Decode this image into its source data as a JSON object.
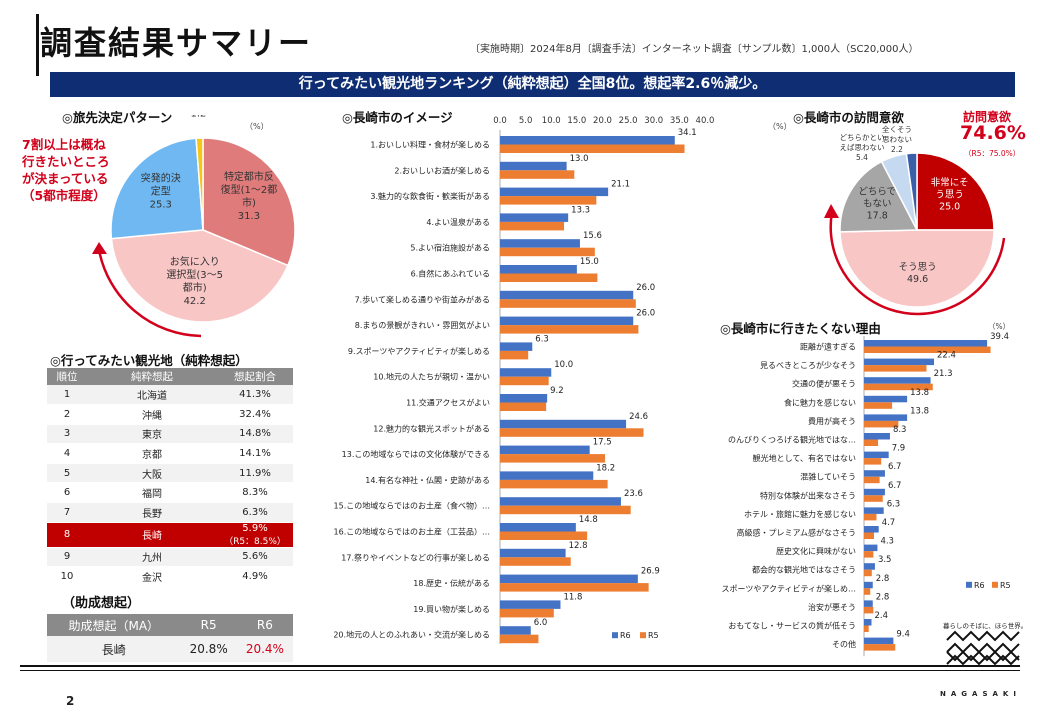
{
  "header": {
    "title": "調査結果サマリー",
    "meta": "〔実施時期〕2024年8月〔調査手法〕インターネット調査〔サンプル数〕1,000人（SC20,000人）",
    "banner": "行ってみたい観光地ランキング（純粋想起）全国8位。想起率2.6％減少。"
  },
  "colors": {
    "navy": "#0e2d72",
    "blue": "#4472c4",
    "orange": "#ed7d31",
    "red": "#c00000"
  },
  "pattern": {
    "title": "◎旅先決定パターン",
    "unit": "（%）",
    "note": [
      "7割以上は概ね",
      "行きたいところ",
      "が決まっている",
      "（5都市程度）"
    ],
    "slices": [
      {
        "label": [
          "特定都市反",
          "復型(1～2都",
          "市)"
        ],
        "value": 31.3,
        "color": "#e07b7b"
      },
      {
        "label": [
          "お気に入り",
          "選択型(3～5",
          "都市)"
        ],
        "value": 42.2,
        "color": "#f9c6c6"
      },
      {
        "label": [
          "突発的決",
          "定型"
        ],
        "value": 25.3,
        "color": "#6fb8f2"
      },
      {
        "label": [
          "その他"
        ],
        "value": 1.2,
        "color": "#f5c518"
      }
    ]
  },
  "image": {
    "title": "◎長崎市のイメージ",
    "ticks": [
      "0.0",
      "5.0",
      "10.0",
      "15.0",
      "20.0",
      "25.0",
      "30.0",
      "35.0",
      "40.0"
    ],
    "legend": [
      "R6",
      "R5"
    ],
    "items": [
      {
        "label": "1.おいしい料理・食材が楽しめる",
        "r6": 34.1,
        "r5": 36.0
      },
      {
        "label": "2.おいしいお酒が楽しめる",
        "r6": 13.0,
        "r5": 14.5
      },
      {
        "label": "3.魅力的な飲食街・歓楽街がある",
        "r6": 21.1,
        "r5": 18.8
      },
      {
        "label": "4.よい温泉がある",
        "r6": 13.3,
        "r5": 12.5
      },
      {
        "label": "5.よい宿泊施設がある",
        "r6": 15.6,
        "r5": 18.5
      },
      {
        "label": "6.自然にあふれている",
        "r6": 15.0,
        "r5": 19.0
      },
      {
        "label": "7.歩いて楽しめる通りや街並みがある",
        "r6": 26.0,
        "r5": 26.5
      },
      {
        "label": "8.まちの景観がきれい・雰囲気がよい",
        "r6": 26.0,
        "r5": 27.0
      },
      {
        "label": "9.スポーツやアクティビティが楽しめる",
        "r6": 6.3,
        "r5": 5.5
      },
      {
        "label": "10.地元の人たちが親切・温かい",
        "r6": 10.0,
        "r5": 9.5
      },
      {
        "label": "11.交通アクセスがよい",
        "r6": 9.2,
        "r5": 9.0
      },
      {
        "label": "12.魅力的な観光スポットがある",
        "r6": 24.6,
        "r5": 28.0
      },
      {
        "label": "13.この地域ならではの文化体験ができる",
        "r6": 17.5,
        "r5": 20.5
      },
      {
        "label": "14.有名な神社・仏閣・史跡がある",
        "r6": 18.2,
        "r5": 21.0
      },
      {
        "label": "15.この地域ならではのお土産（食べ物）…",
        "r6": 23.6,
        "r5": 25.5
      },
      {
        "label": "16.この地域ならではのお土産（工芸品）…",
        "r6": 14.8,
        "r5": 17.0
      },
      {
        "label": "17.祭りやイベントなどの行事が楽しめる",
        "r6": 12.8,
        "r5": 13.8
      },
      {
        "label": "18.歴史・伝統がある",
        "r6": 26.9,
        "r5": 29.0
      },
      {
        "label": "19.買い物が楽しめる",
        "r6": 11.8,
        "r5": 10.5
      },
      {
        "label": "20.地元の人とのふれあい・交流が楽しめる",
        "r6": 6.0,
        "r5": 7.5
      }
    ]
  },
  "visit": {
    "title": "◎長崎市の訪問意欲",
    "unit": "（%）",
    "headline": "訪問意欲",
    "value": "74.6%",
    "prev": "（R5：75.0%）",
    "slices": [
      {
        "label": [
          "非常にそ",
          "う思う"
        ],
        "value": 25.0,
        "color": "#c00000"
      },
      {
        "label": [
          "そう思う"
        ],
        "value": 49.6,
        "color": "#f9c6c6"
      },
      {
        "label": [
          "どちらで",
          "もない"
        ],
        "value": 17.8,
        "color": "#a6a6a6"
      },
      {
        "label": [
          "どちらかとい",
          "えば思わない"
        ],
        "value": 5.4,
        "color": "#c5daf0"
      },
      {
        "label": [
          "全くそう",
          "思わない"
        ],
        "value": 2.2,
        "color": "#3a5ea8"
      }
    ]
  },
  "reasons": {
    "title": "◎長崎市に行きたくない理由",
    "unit": "（%）",
    "legend": [
      "R6",
      "R5"
    ],
    "items": [
      {
        "label": "距離が遠すぎる",
        "r6": 39.4,
        "r5": 40.5
      },
      {
        "label": "見るべきところが少なそう",
        "r6": 22.4,
        "r5": 20.0
      },
      {
        "label": "交通の便が悪そう",
        "r6": 21.3,
        "r5": 22.0
      },
      {
        "label": "食に魅力を感じない",
        "r6": 13.8,
        "r5": 9.0
      },
      {
        "label": "費用が高そう",
        "r6": 13.8,
        "r5": 11.0
      },
      {
        "label": "のんびりくつろげる観光地ではな…",
        "r6": 8.3,
        "r5": 4.5
      },
      {
        "label": "観光地として、有名ではない",
        "r6": 7.9,
        "r5": 5.5
      },
      {
        "label": "混雑していそう",
        "r6": 6.7,
        "r5": 5.0
      },
      {
        "label": "特別な体験が出来なさそう",
        "r6": 6.7,
        "r5": 6.0
      },
      {
        "label": "ホテル・旅館に魅力を感じない",
        "r6": 6.3,
        "r5": 4.0
      },
      {
        "label": "高級感・プレミアム感がなさそう",
        "r6": 4.7,
        "r5": 3.2
      },
      {
        "label": "歴史文化に興味がない",
        "r6": 4.3,
        "r5": 3.0
      },
      {
        "label": "都会的な観光地ではなさそう",
        "r6": 3.5,
        "r5": 2.5
      },
      {
        "label": "スポーツやアクティビティが楽しめ…",
        "r6": 2.8,
        "r5": 2.0
      },
      {
        "label": "治安が悪そう",
        "r6": 2.8,
        "r5": 3.0
      },
      {
        "label": "おもてなし・サービスの質が低そう",
        "r6": 2.4,
        "r5": 1.5
      },
      {
        "label": "その他",
        "r6": 9.4,
        "r5": 10.0
      }
    ]
  },
  "ranking": {
    "title": "◎行ってみたい観光地（純粋想起）",
    "headers": [
      "順位",
      "純粋想起",
      "想起割合"
    ],
    "rows": [
      {
        "rank": "1",
        "name": "北海道",
        "rate": "41.3%"
      },
      {
        "rank": "2",
        "name": "沖縄",
        "rate": "32.4%"
      },
      {
        "rank": "3",
        "name": "東京",
        "rate": "14.8%"
      },
      {
        "rank": "4",
        "name": "京都",
        "rate": "14.1%"
      },
      {
        "rank": "5",
        "name": "大阪",
        "rate": "11.9%"
      },
      {
        "rank": "6",
        "name": "福岡",
        "rate": "8.3%"
      },
      {
        "rank": "7",
        "name": "長野",
        "rate": "6.3%"
      },
      {
        "rank": "8",
        "name": "長崎",
        "rate": "5.9%",
        "rate2": "（R5：8.5%）"
      },
      {
        "rank": "9",
        "name": "九州",
        "rate": "5.6%"
      },
      {
        "rank": "10",
        "name": "金沢",
        "rate": "4.9%"
      }
    ]
  },
  "assist": {
    "title": "（助成想起）",
    "headers": [
      "助成想起（MA）",
      "R5",
      "R6"
    ],
    "row": {
      "name": "長崎",
      "r5": "20.8%",
      "r6": "20.4%"
    }
  },
  "footer": {
    "page": "2",
    "brand": "NAGASAKI",
    "tagline": "暮らしのそばに、ほら世界。"
  }
}
